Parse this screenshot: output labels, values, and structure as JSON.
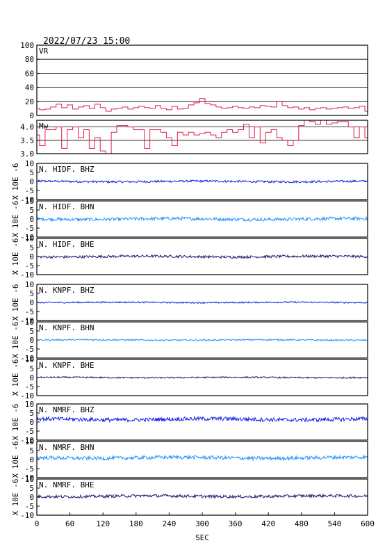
{
  "header": {
    "datetime": "2022/07/23 15:00"
  },
  "colors": {
    "vr_line": "#e0204a",
    "mw_line": "#e0204a",
    "bhz": "#0a1ee0",
    "bhn": "#1e90ff",
    "bhe": "#141a6e",
    "axis": "#000000"
  },
  "chart_data": [
    {
      "type": "line",
      "label": "VR",
      "ylim": [
        0,
        100
      ],
      "yticks": [
        "100",
        "80",
        "60",
        "40",
        "20",
        "0"
      ],
      "grid": true,
      "x": [
        0,
        10,
        20,
        30,
        40,
        50,
        60,
        70,
        80,
        90,
        100,
        110,
        120,
        130,
        140,
        150,
        160,
        170,
        180,
        190,
        200,
        210,
        220,
        230,
        240,
        250,
        260,
        270,
        280,
        290,
        300,
        310,
        320,
        330,
        340,
        350,
        360,
        370,
        380,
        390,
        400,
        410,
        420,
        430,
        440,
        450,
        460,
        470,
        480,
        490,
        500,
        510,
        520,
        530,
        540,
        550,
        560,
        570,
        580,
        590,
        600
      ],
      "y": [
        10,
        8,
        9,
        12,
        16,
        11,
        15,
        9,
        12,
        14,
        10,
        16,
        11,
        6,
        9,
        10,
        12,
        9,
        11,
        13,
        11,
        10,
        14,
        10,
        8,
        13,
        9,
        10,
        15,
        18,
        24,
        17,
        15,
        12,
        10,
        11,
        13,
        11,
        10,
        12,
        11,
        14,
        13,
        12,
        20,
        14,
        11,
        12,
        9,
        11,
        8,
        10,
        11,
        9,
        10,
        11,
        12,
        10,
        11,
        13,
        6
      ]
    },
    {
      "type": "line",
      "label": "Mw",
      "ylim": [
        3.0,
        4.25
      ],
      "yticks": [
        "4.0",
        "3.5",
        "3.0"
      ],
      "grid": true,
      "x": [
        0,
        10,
        20,
        30,
        40,
        50,
        60,
        70,
        80,
        90,
        100,
        110,
        120,
        130,
        140,
        150,
        160,
        170,
        180,
        190,
        200,
        210,
        220,
        230,
        240,
        250,
        260,
        270,
        280,
        290,
        300,
        310,
        320,
        330,
        340,
        350,
        360,
        370,
        380,
        390,
        400,
        410,
        420,
        430,
        440,
        450,
        460,
        470,
        480,
        490,
        500,
        510,
        520,
        530,
        540,
        550,
        560,
        570,
        580,
        590,
        600
      ],
      "y": [
        3.7,
        3.3,
        3.9,
        3.9,
        4.0,
        3.2,
        3.9,
        4.0,
        3.6,
        3.9,
        3.2,
        3.6,
        3.1,
        3.0,
        3.8,
        4.05,
        4.05,
        4.0,
        3.9,
        3.9,
        3.2,
        3.9,
        3.9,
        3.8,
        3.6,
        3.3,
        3.8,
        3.7,
        3.8,
        3.7,
        3.75,
        3.8,
        3.7,
        3.6,
        3.8,
        3.9,
        3.8,
        3.9,
        4.1,
        3.6,
        4.0,
        3.4,
        3.8,
        3.9,
        3.6,
        3.5,
        3.3,
        3.5,
        4.05,
        4.25,
        4.2,
        4.1,
        4.25,
        4.1,
        4.15,
        4.2,
        4.2,
        4.0,
        3.6,
        4.0,
        3.6
      ]
    },
    {
      "type": "line",
      "label": "N. HIDF. BHZ",
      "color_key": "bhz",
      "ylabel": "X 10E -6",
      "ylim": [
        -10,
        10
      ],
      "yticks": [
        "10",
        "5",
        "0",
        "-5",
        "-10"
      ],
      "y_center": 0,
      "amplitude": 0.6
    },
    {
      "type": "line",
      "label": "N. HIDF. BHN",
      "color_key": "bhn",
      "ylabel": "X 10E -6",
      "ylim": [
        -10,
        10
      ],
      "yticks": [
        "10",
        "5",
        "0",
        "-5",
        "-10"
      ],
      "y_center": 0,
      "amplitude": 0.9
    },
    {
      "type": "line",
      "label": "N. HIDF. BHE",
      "color_key": "bhe",
      "ylabel": "X 10E -6",
      "ylim": [
        -10,
        10
      ],
      "yticks": [
        "10",
        "5",
        "0",
        "-5",
        "-10"
      ],
      "y_center": 0,
      "amplitude": 0.7
    },
    {
      "type": "line",
      "label": "N. KNPF. BHZ",
      "color_key": "bhz",
      "ylabel": "X 10E -6",
      "ylim": [
        -10,
        10
      ],
      "yticks": [
        "10",
        "5",
        "0",
        "-5",
        "-10"
      ],
      "y_center": 0,
      "amplitude": 0.4
    },
    {
      "type": "line",
      "label": "N. KNPF. BHN",
      "color_key": "bhn",
      "ylabel": "X 10E -6",
      "ylim": [
        -10,
        10
      ],
      "yticks": [
        "10",
        "5",
        "0",
        "-5",
        "-10"
      ],
      "y_center": 0,
      "amplitude": 0.4
    },
    {
      "type": "line",
      "label": "N. KNPF. BHE",
      "color_key": "bhe",
      "ylabel": "X 10E -6",
      "ylim": [
        -10,
        10
      ],
      "yticks": [
        "10",
        "5",
        "0",
        "-5",
        "-10"
      ],
      "y_center": 0,
      "amplitude": 0.4
    },
    {
      "type": "line",
      "label": "N. NMRF. BHZ",
      "color_key": "bhz",
      "ylabel": "X 10E -6",
      "ylim": [
        -10,
        10
      ],
      "yticks": [
        "10",
        "5",
        "0",
        "-5",
        "-10"
      ],
      "y_center": 1.5,
      "amplitude": 1.1
    },
    {
      "type": "line",
      "label": "N. NMRF. BHN",
      "color_key": "bhn",
      "ylabel": "X 10E -6",
      "ylim": [
        -10,
        10
      ],
      "yticks": [
        "10",
        "5",
        "0",
        "-5",
        "-10"
      ],
      "y_center": 1.0,
      "amplitude": 1.0
    },
    {
      "type": "line",
      "label": "N. NMRF. BHE",
      "color_key": "bhe",
      "ylabel": "X 10E -6",
      "ylim": [
        -10,
        10
      ],
      "yticks": [
        "10",
        "5",
        "0",
        "-5",
        "-10"
      ],
      "y_center": 0.5,
      "amplitude": 0.8
    }
  ],
  "x_axis": {
    "label": "SEC",
    "xlim": [
      0,
      600
    ],
    "ticks": [
      "0",
      "60",
      "120",
      "180",
      "240",
      "300",
      "360",
      "420",
      "480",
      "540",
      "600"
    ]
  }
}
